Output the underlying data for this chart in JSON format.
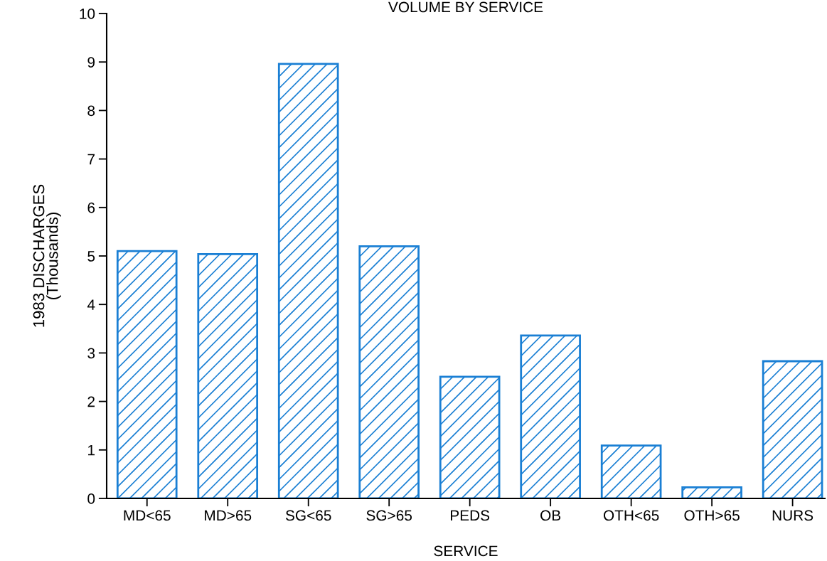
{
  "chart_data": {
    "type": "bar",
    "title": "VOLUME BY SERVICE",
    "xlabel": "SERVICE",
    "ylabel": "1983 DISCHARGES\n(Thousands)",
    "categories": [
      "MD<65",
      "MD>65",
      "SG<65",
      "SG>65",
      "PEDS",
      "OB",
      "OTH<65",
      "OTH>65",
      "NURS"
    ],
    "values": [
      5.1,
      5.04,
      8.96,
      5.2,
      2.51,
      3.36,
      1.09,
      0.23,
      2.83
    ],
    "color": "#1a7fd4",
    "ylim": [
      0,
      10
    ],
    "yticks": [
      0,
      1,
      2,
      3,
      4,
      5,
      6,
      7,
      8,
      9,
      10
    ],
    "grid": false
  }
}
